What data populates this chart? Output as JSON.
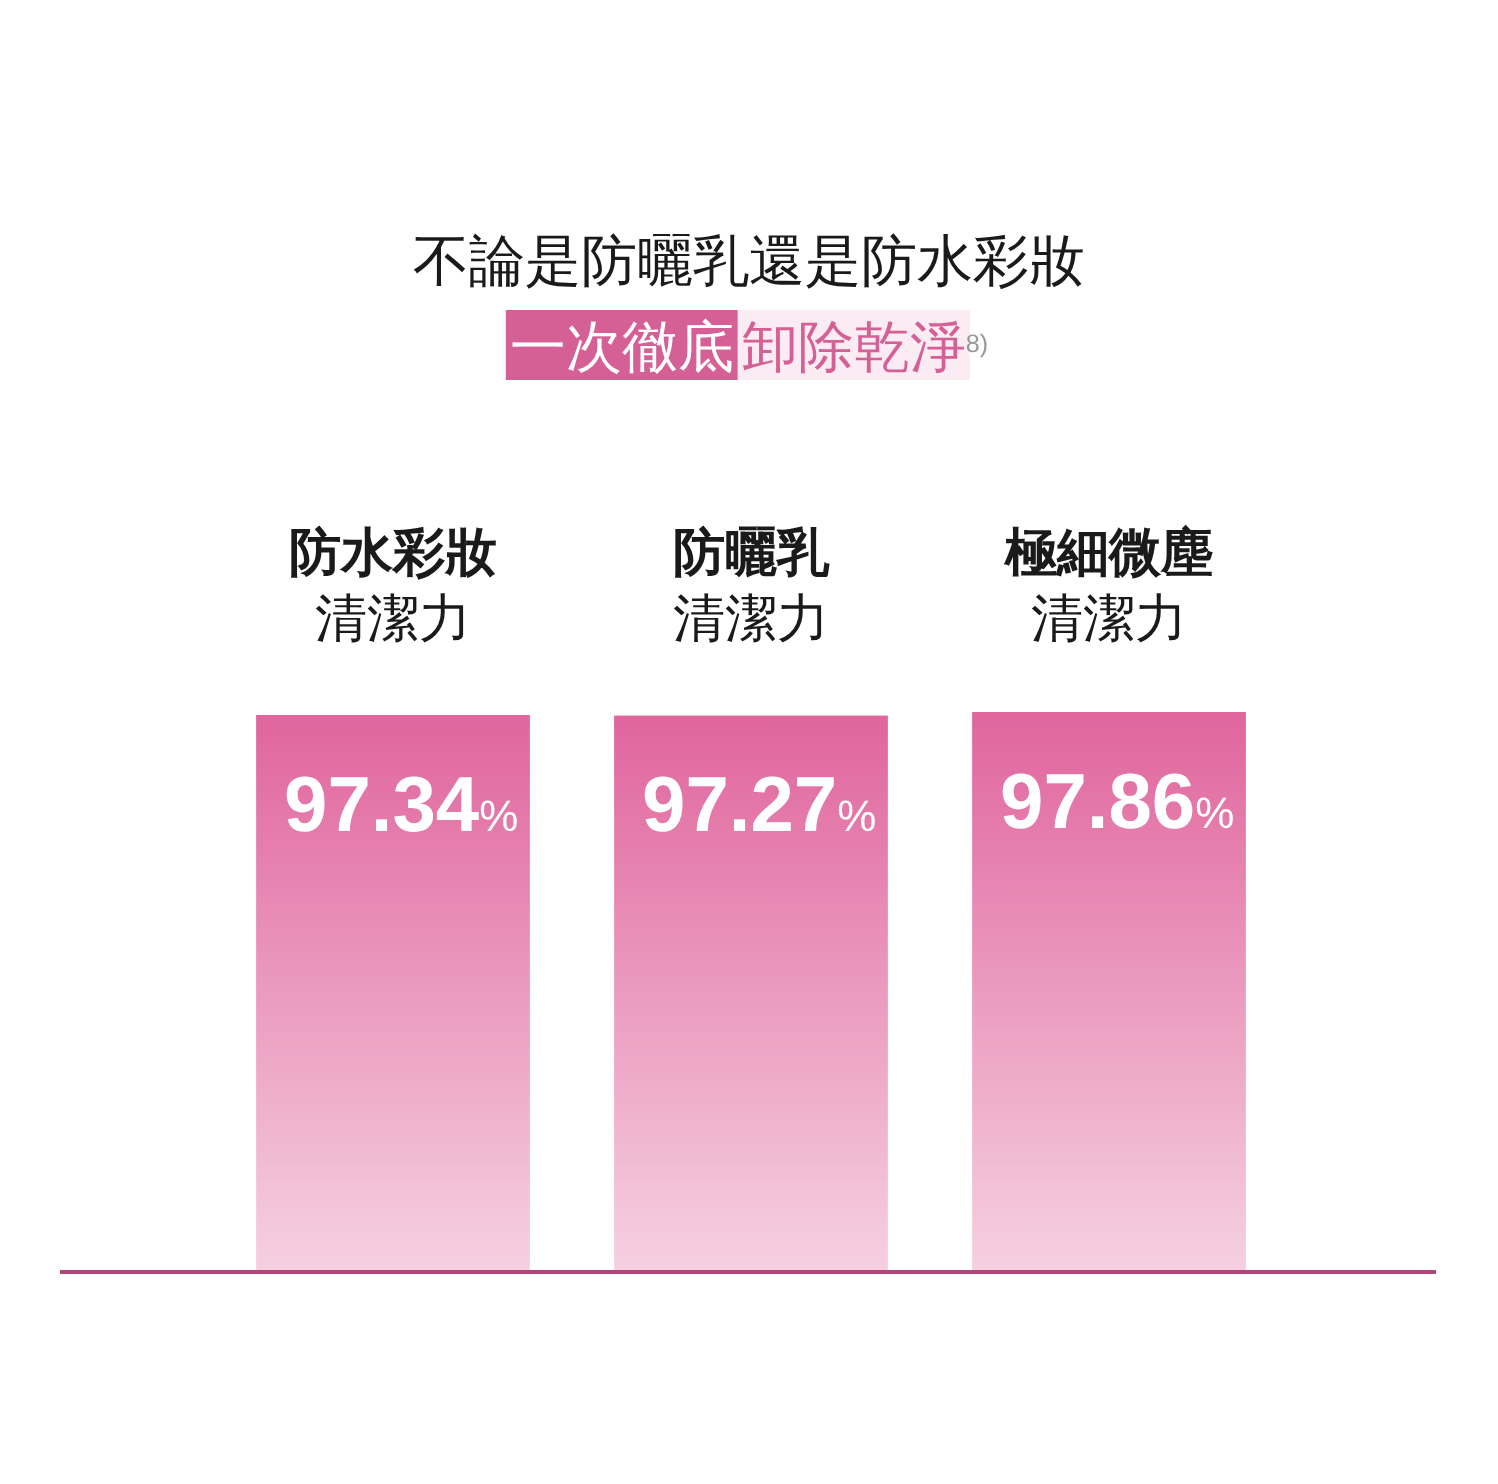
{
  "chart_data": {
    "type": "bar",
    "title": "不論是防曬乳還是防水彩妝",
    "subtitle": "一次徹底 卸除乾淨$^{8)}$",
    "categories": [
      "防水彩妝清潔力",
      "防曬乳清潔力",
      "極細微塵清潔力"
    ],
    "values": [
      97.34,
      97.27,
      97.86
    ],
    "value_labels": [
      "97.34%",
      "97.27%",
      "97.86%"
    ],
    "color": "#e0659d"
  }
}
